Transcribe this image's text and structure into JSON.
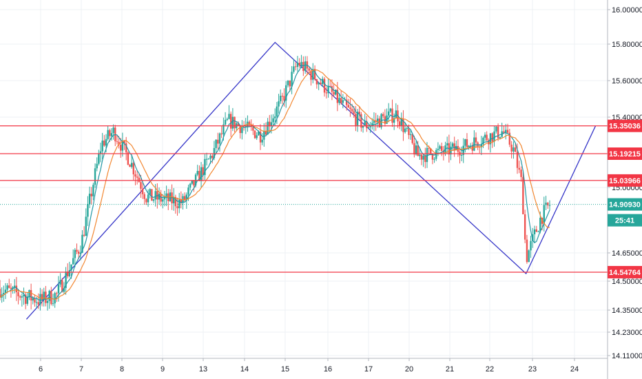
{
  "chart_data": {
    "type": "candlestick",
    "title": "",
    "xlabel": "",
    "ylabel": "",
    "ylim": [
      14.11,
      16.06
    ],
    "grid": true,
    "x_ticks": [
      "6",
      "7",
      "8",
      "9",
      "13",
      "14",
      "15",
      "16",
      "17",
      "20",
      "21",
      "22",
      "23",
      "24"
    ],
    "y_ticks": [
      "16.00000",
      "15.80000",
      "15.60000",
      "15.40000",
      "15.00000",
      "14.65000",
      "14.50000",
      "14.35000",
      "14.23000",
      "14.11000"
    ],
    "price_series": {
      "name": "",
      "approx_path": [
        [
          0,
          14.46
        ],
        [
          1,
          14.4
        ],
        [
          1.4,
          14.43
        ],
        [
          2,
          14.7
        ],
        [
          2.5,
          15.25
        ],
        [
          2.8,
          15.32
        ],
        [
          3.2,
          15.15
        ],
        [
          3.6,
          14.95
        ],
        [
          4.5,
          14.92
        ],
        [
          5.2,
          15.18
        ],
        [
          5.6,
          15.38
        ],
        [
          6.4,
          15.3
        ],
        [
          6.9,
          15.48
        ],
        [
          7.3,
          15.7
        ],
        [
          7.7,
          15.62
        ],
        [
          8.3,
          15.48
        ],
        [
          8.9,
          15.35
        ],
        [
          9.7,
          15.42
        ],
        [
          10.2,
          15.18
        ],
        [
          11.2,
          15.22
        ],
        [
          12.3,
          15.32
        ],
        [
          12.55,
          15.22
        ],
        [
          12.75,
          15.02
        ],
        [
          12.85,
          14.62
        ],
        [
          13.2,
          14.84
        ],
        [
          13.45,
          14.92
        ]
      ]
    },
    "moving_averages": [
      {
        "name": "",
        "color": "#2196a3",
        "kind": "fast"
      },
      {
        "name": "",
        "color": "#f2862f",
        "kind": "slow"
      }
    ],
    "horizontal_levels": [
      {
        "value": "15.35036",
        "price": 15.35036,
        "color": "#f23645"
      },
      {
        "value": "15.19215",
        "price": 15.19215,
        "color": "#f23645"
      },
      {
        "value": "15.03966",
        "price": 15.03966,
        "color": "#f23645"
      },
      {
        "value": "14.54764",
        "price": 14.54764,
        "color": "#f23645"
      }
    ],
    "current_price": {
      "value": "14.90930",
      "price": 14.9093,
      "color": "#26a69a"
    },
    "countdown": {
      "value": "25:41"
    },
    "pattern_line": {
      "color": "#3535c8",
      "points": [
        {
          "x": 0.65,
          "y": 14.3
        },
        {
          "x": 6.75,
          "y": 15.81
        },
        {
          "x": 12.85,
          "y": 14.54
        },
        {
          "x": 14.5,
          "y": 15.35
        }
      ]
    },
    "colors": {
      "bull": "#26a69a",
      "bear": "#ef5350",
      "grid": "#eef0f4",
      "axis_text": "#131722"
    }
  }
}
